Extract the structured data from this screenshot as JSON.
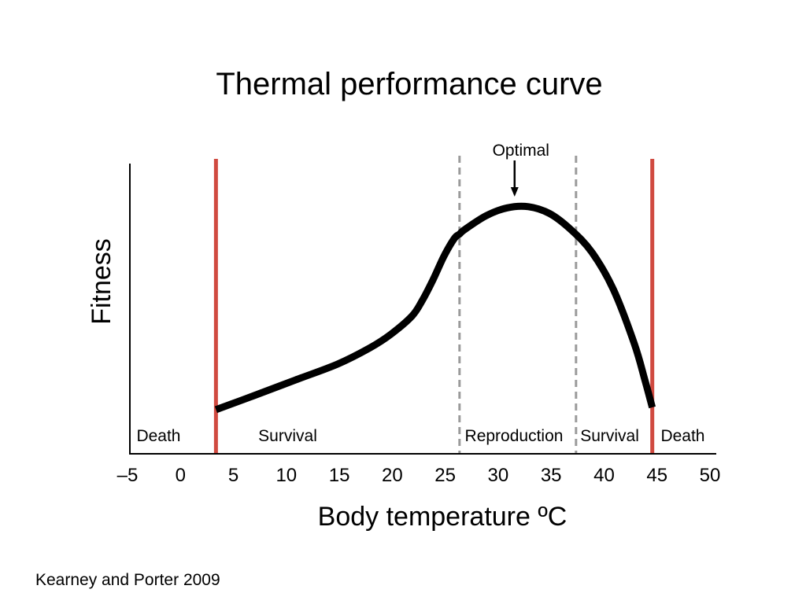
{
  "chart_data": {
    "type": "line",
    "title": "Thermal performance curve",
    "xlabel": "Body temperature ºC",
    "ylabel": "Fitness",
    "xlim": [
      -5,
      50
    ],
    "ylim": [
      0,
      1
    ],
    "x_ticks": [
      "–5",
      "0",
      "5",
      "10",
      "15",
      "20",
      "25",
      "30",
      "35",
      "40",
      "45",
      "50"
    ],
    "grid": false,
    "series": [
      {
        "x": [
          3.5,
          7,
          11,
          15,
          18,
          20,
          22,
          23,
          24,
          25,
          26,
          26.5,
          27,
          29,
          31,
          33,
          35,
          37,
          39,
          41,
          43,
          44,
          44.7
        ],
        "y": [
          0.09,
          0.15,
          0.22,
          0.29,
          0.36,
          0.42,
          0.5,
          0.57,
          0.66,
          0.76,
          0.84,
          0.86,
          0.88,
          0.94,
          0.975,
          0.98,
          0.95,
          0.88,
          0.78,
          0.62,
          0.38,
          0.22,
          0.1
        ]
      }
    ],
    "thresholds": [
      {
        "x": 3.5,
        "style": "solid",
        "color": "#d04a40"
      },
      {
        "x": 26.5,
        "style": "dashed",
        "color": "#9a9a9a"
      },
      {
        "x": 37.5,
        "style": "dashed",
        "color": "#9a9a9a"
      },
      {
        "x": 44.7,
        "style": "solid",
        "color": "#d04a40"
      }
    ],
    "regions": [
      {
        "label": "Death",
        "x": -4
      },
      {
        "label": "Survival",
        "x": 7.5
      },
      {
        "label": "Reproduction",
        "x": 27
      },
      {
        "label": "Survival",
        "x": 37.9
      },
      {
        "label": "Death",
        "x": 45.5
      }
    ],
    "annotation": {
      "label": "Optimal",
      "x": 31.7
    }
  },
  "source": "Kearney and Porter 2009"
}
